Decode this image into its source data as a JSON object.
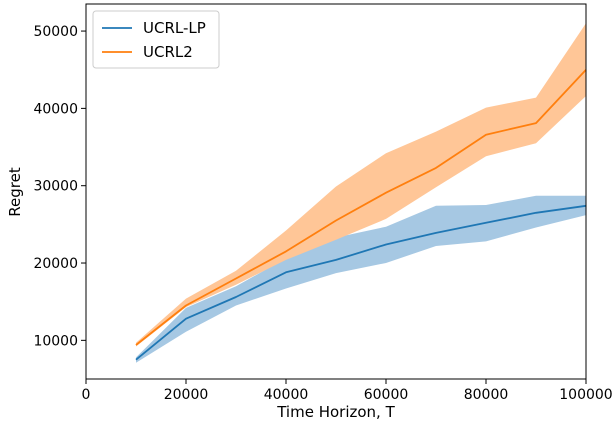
{
  "chart_data": {
    "type": "line",
    "xlabel": "Time Horizon, T",
    "ylabel": "Regret",
    "xlim": [
      0,
      100000
    ],
    "ylim": [
      5000,
      53500
    ],
    "xticks": [
      0,
      20000,
      40000,
      60000,
      80000,
      100000
    ],
    "yticks": [
      10000,
      20000,
      30000,
      40000,
      50000
    ],
    "grid": false,
    "legend_position": "top-left",
    "x": [
      10000,
      20000,
      30000,
      40000,
      50000,
      60000,
      70000,
      80000,
      90000,
      100000
    ],
    "series": [
      {
        "name": "UCRL-LP",
        "color": "#1f77b4",
        "band_color": "#a6c8e3",
        "values": [
          7500,
          12800,
          15600,
          18800,
          20400,
          22400,
          23900,
          25200,
          26500,
          27400
        ],
        "lower": [
          7100,
          11100,
          14500,
          16700,
          18700,
          20000,
          22200,
          22800,
          24600,
          26200
        ],
        "upper": [
          7800,
          14200,
          17000,
          20600,
          23300,
          24700,
          27400,
          27500,
          28700,
          28700
        ]
      },
      {
        "name": "UCRL2",
        "color": "#ff7f0e",
        "band_color": "#ffc697",
        "values": [
          9400,
          14500,
          18000,
          21500,
          25500,
          29100,
          32300,
          36600,
          38100,
          45000
        ],
        "lower": [
          9200,
          14300,
          17200,
          20400,
          23000,
          25700,
          29800,
          33800,
          35500,
          41600
        ],
        "upper": [
          9700,
          15400,
          19000,
          24200,
          29900,
          34200,
          37000,
          40100,
          41400,
          51000
        ]
      }
    ]
  }
}
